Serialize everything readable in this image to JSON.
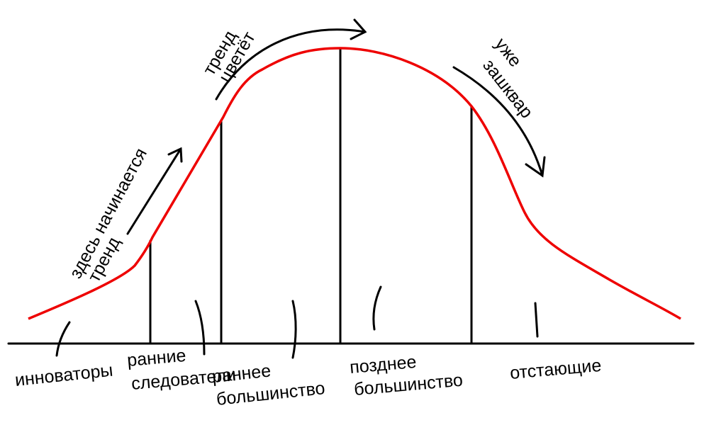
{
  "segments": [
    {
      "lines": [
        "инноваторы"
      ]
    },
    {
      "lines": [
        "ранние",
        "следователи"
      ]
    },
    {
      "lines": [
        "раннее",
        "большинство"
      ]
    },
    {
      "lines": [
        "позднее",
        "большинство"
      ]
    },
    {
      "lines": [
        "отстающие"
      ]
    }
  ],
  "annotations": [
    {
      "lines": [
        "здесь начинается",
        "тренд"
      ]
    },
    {
      "lines": [
        "тренд",
        "цветёт"
      ]
    },
    {
      "lines": [
        "уже",
        "зашквар"
      ]
    }
  ]
}
